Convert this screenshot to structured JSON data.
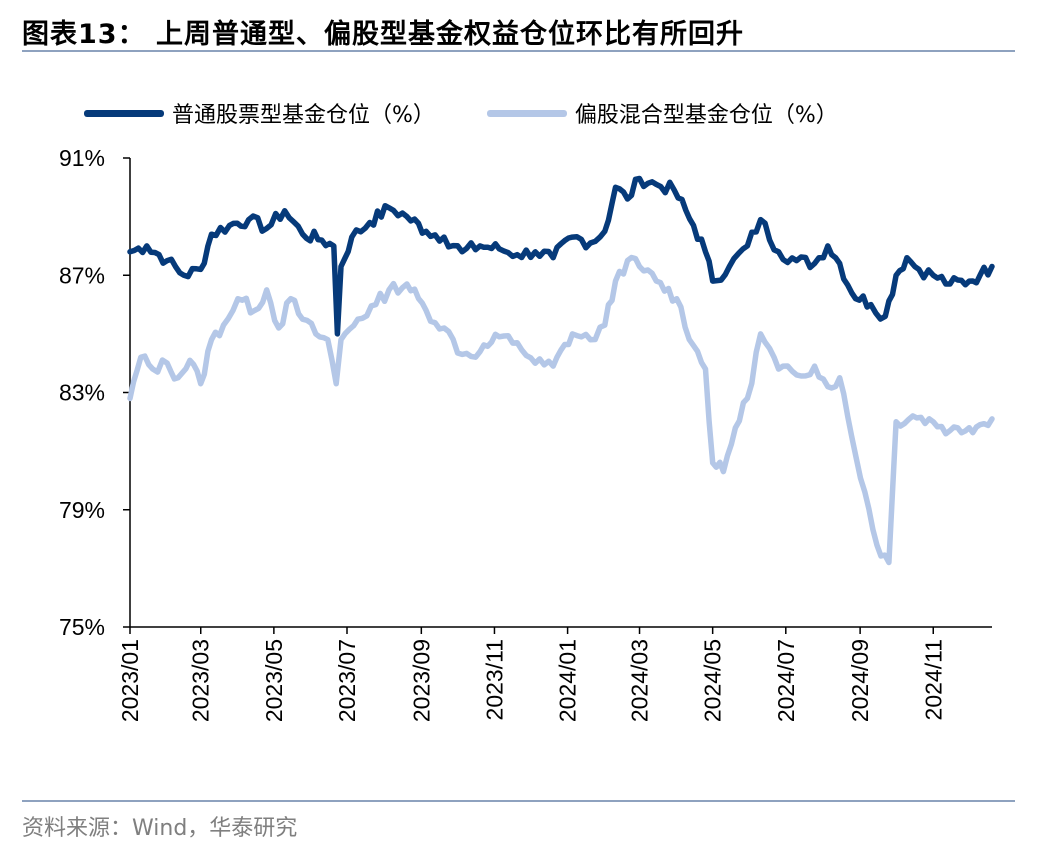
{
  "title": "图表13： 上周普通型、偏股型基金权益仓位环比有所回升",
  "source": "资料来源：Wind，华泰研究",
  "colors": {
    "dark": "#063a7a",
    "light": "#b4c7e7",
    "rule": "#8ea2bf",
    "axis": "#000000"
  },
  "chart_data": {
    "type": "line",
    "title": "图表13： 上周普通型、偏股型基金权益仓位环比有所回升",
    "xlabel": "",
    "ylabel": "",
    "x_ticks": [
      "2023/01",
      "2023/03",
      "2023/05",
      "2023/07",
      "2023/09",
      "2023/11",
      "2024/01",
      "2024/03",
      "2024/05",
      "2024/07",
      "2024/09",
      "2024/11"
    ],
    "y_ticks": [
      "91%",
      "87%",
      "83%",
      "79%",
      "75%"
    ],
    "ylim": [
      75,
      91
    ],
    "x_range": [
      "2023-01-01",
      "2024-12-20"
    ],
    "legend": "top",
    "grid": false,
    "series": [
      {
        "name": "普通股票型基金仓位（%）",
        "color": "#063a7a",
        "points": [
          [
            "2023-01-01",
            87.8
          ],
          [
            "2023-01-15",
            88.0
          ],
          [
            "2023-02-01",
            87.5
          ],
          [
            "2023-02-15",
            87.0
          ],
          [
            "2023-03-01",
            87.2
          ],
          [
            "2023-03-10",
            88.4
          ],
          [
            "2023-03-25",
            88.7
          ],
          [
            "2023-04-10",
            88.9
          ],
          [
            "2023-04-25",
            88.6
          ],
          [
            "2023-05-10",
            89.2
          ],
          [
            "2023-05-25",
            88.4
          ],
          [
            "2023-06-10",
            88.2
          ],
          [
            "2023-06-20",
            88.0
          ],
          [
            "2023-06-23",
            85.0
          ],
          [
            "2023-06-26",
            87.3
          ],
          [
            "2023-07-05",
            88.3
          ],
          [
            "2023-07-20",
            88.8
          ],
          [
            "2023-08-05",
            89.3
          ],
          [
            "2023-08-20",
            89.0
          ],
          [
            "2023-09-05",
            88.5
          ],
          [
            "2023-09-20",
            88.3
          ],
          [
            "2023-10-05",
            87.8
          ],
          [
            "2023-10-20",
            88.0
          ],
          [
            "2023-11-05",
            87.9
          ],
          [
            "2023-11-20",
            87.7
          ],
          [
            "2023-12-05",
            87.8
          ],
          [
            "2023-12-20",
            87.6
          ],
          [
            "2024-01-05",
            88.3
          ],
          [
            "2024-01-20",
            88.1
          ],
          [
            "2024-02-01",
            88.5
          ],
          [
            "2024-02-10",
            90.0
          ],
          [
            "2024-02-20",
            89.6
          ],
          [
            "2024-03-01",
            90.3
          ],
          [
            "2024-03-15",
            90.1
          ],
          [
            "2024-03-30",
            89.9
          ],
          [
            "2024-04-15",
            88.7
          ],
          [
            "2024-04-25",
            87.8
          ],
          [
            "2024-05-01",
            86.8
          ],
          [
            "2024-05-15",
            87.3
          ],
          [
            "2024-05-30",
            88.0
          ],
          [
            "2024-06-10",
            88.9
          ],
          [
            "2024-06-25",
            87.8
          ],
          [
            "2024-07-10",
            87.5
          ],
          [
            "2024-07-25",
            87.4
          ],
          [
            "2024-08-05",
            88.0
          ],
          [
            "2024-08-15",
            87.4
          ],
          [
            "2024-08-25",
            86.4
          ],
          [
            "2024-09-10",
            86.0
          ],
          [
            "2024-09-22",
            85.6
          ],
          [
            "2024-10-01",
            87.0
          ],
          [
            "2024-10-10",
            87.6
          ],
          [
            "2024-10-20",
            87.2
          ],
          [
            "2024-11-01",
            87.0
          ],
          [
            "2024-11-15",
            86.7
          ],
          [
            "2024-12-01",
            86.8
          ],
          [
            "2024-12-10",
            87.0
          ],
          [
            "2024-12-20",
            87.3
          ]
        ]
      },
      {
        "name": "偏股混合型基金仓位（%）",
        "color": "#b4c7e7",
        "points": [
          [
            "2023-01-01",
            82.8
          ],
          [
            "2023-01-10",
            84.2
          ],
          [
            "2023-01-20",
            83.8
          ],
          [
            "2023-02-01",
            84.0
          ],
          [
            "2023-02-10",
            83.5
          ],
          [
            "2023-02-20",
            84.1
          ],
          [
            "2023-03-01",
            83.3
          ],
          [
            "2023-03-10",
            84.8
          ],
          [
            "2023-03-20",
            85.3
          ],
          [
            "2023-04-01",
            86.2
          ],
          [
            "2023-04-15",
            85.8
          ],
          [
            "2023-04-25",
            86.5
          ],
          [
            "2023-05-05",
            85.2
          ],
          [
            "2023-05-15",
            86.2
          ],
          [
            "2023-05-25",
            85.5
          ],
          [
            "2023-06-05",
            85.0
          ],
          [
            "2023-06-15",
            84.8
          ],
          [
            "2023-06-22",
            83.3
          ],
          [
            "2023-06-26",
            84.8
          ],
          [
            "2023-07-10",
            85.5
          ],
          [
            "2023-07-25",
            86.0
          ],
          [
            "2023-08-05",
            86.5
          ],
          [
            "2023-08-20",
            86.7
          ],
          [
            "2023-09-05",
            85.8
          ],
          [
            "2023-09-20",
            85.2
          ],
          [
            "2023-10-05",
            84.3
          ],
          [
            "2023-10-20",
            84.4
          ],
          [
            "2023-11-05",
            84.9
          ],
          [
            "2023-11-20",
            84.7
          ],
          [
            "2023-12-05",
            84.0
          ],
          [
            "2023-12-20",
            83.9
          ],
          [
            "2024-01-05",
            85.0
          ],
          [
            "2024-01-20",
            84.8
          ],
          [
            "2024-02-01",
            85.3
          ],
          [
            "2024-02-10",
            86.8
          ],
          [
            "2024-02-20",
            87.5
          ],
          [
            "2024-03-01",
            87.3
          ],
          [
            "2024-03-15",
            86.8
          ],
          [
            "2024-04-01",
            86.2
          ],
          [
            "2024-04-15",
            84.6
          ],
          [
            "2024-04-25",
            83.8
          ],
          [
            "2024-05-01",
            80.6
          ],
          [
            "2024-05-10",
            80.3
          ],
          [
            "2024-05-20",
            81.8
          ],
          [
            "2024-05-30",
            82.8
          ],
          [
            "2024-06-10",
            85.0
          ],
          [
            "2024-06-25",
            83.8
          ],
          [
            "2024-07-10",
            83.6
          ],
          [
            "2024-07-25",
            83.9
          ],
          [
            "2024-08-05",
            83.2
          ],
          [
            "2024-08-15",
            83.5
          ],
          [
            "2024-08-25",
            81.5
          ],
          [
            "2024-09-05",
            79.6
          ],
          [
            "2024-09-15",
            77.8
          ],
          [
            "2024-09-25",
            77.2
          ],
          [
            "2024-10-01",
            82.0
          ],
          [
            "2024-10-15",
            82.2
          ],
          [
            "2024-11-01",
            82.0
          ],
          [
            "2024-11-15",
            81.7
          ],
          [
            "2024-12-01",
            81.8
          ],
          [
            "2024-12-10",
            81.9
          ],
          [
            "2024-12-20",
            82.1
          ]
        ]
      }
    ]
  }
}
